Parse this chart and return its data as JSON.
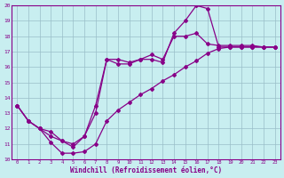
{
  "xlabel": "Windchill (Refroidissement éolien,°C)",
  "bg_color": "#c8eef0",
  "line_color": "#880088",
  "grid_color": "#a0c8d0",
  "xmin": 0,
  "xmax": 23,
  "ymin": 10,
  "ymax": 20,
  "line1_x": [
    0,
    1,
    2,
    3,
    4,
    5,
    6,
    7,
    8,
    9,
    10,
    11,
    12,
    13,
    14,
    15,
    16,
    17,
    18,
    19,
    20,
    21,
    22,
    23
  ],
  "line1_y": [
    13.5,
    12.5,
    12.0,
    11.1,
    10.4,
    10.4,
    10.5,
    11.0,
    12.5,
    13.2,
    13.7,
    14.2,
    14.6,
    15.1,
    15.5,
    16.0,
    16.4,
    16.9,
    17.2,
    17.3,
    17.3,
    17.3,
    17.3,
    17.3
  ],
  "line2_x": [
    0,
    1,
    2,
    3,
    4,
    5,
    6,
    7,
    8,
    9,
    10,
    11,
    12,
    13,
    14,
    15,
    16,
    17,
    18,
    19,
    20,
    21,
    22,
    23
  ],
  "line2_y": [
    13.5,
    12.5,
    12.0,
    11.8,
    11.2,
    10.8,
    11.5,
    13.5,
    16.5,
    16.2,
    16.2,
    16.5,
    16.5,
    16.3,
    18.2,
    19.0,
    20.0,
    19.8,
    17.3,
    17.3,
    17.3,
    17.3,
    17.3,
    17.3
  ],
  "line3_x": [
    0,
    1,
    2,
    3,
    4,
    5,
    6,
    7,
    8,
    9,
    10,
    11,
    12,
    13,
    14,
    15,
    16,
    17,
    18,
    19,
    20,
    21,
    22,
    23
  ],
  "line3_y": [
    13.5,
    12.5,
    12.0,
    11.5,
    11.2,
    11.0,
    11.5,
    13.0,
    16.5,
    16.5,
    16.3,
    16.5,
    16.8,
    16.5,
    18.0,
    18.0,
    18.2,
    17.5,
    17.4,
    17.4,
    17.4,
    17.4,
    17.3,
    17.3
  ]
}
